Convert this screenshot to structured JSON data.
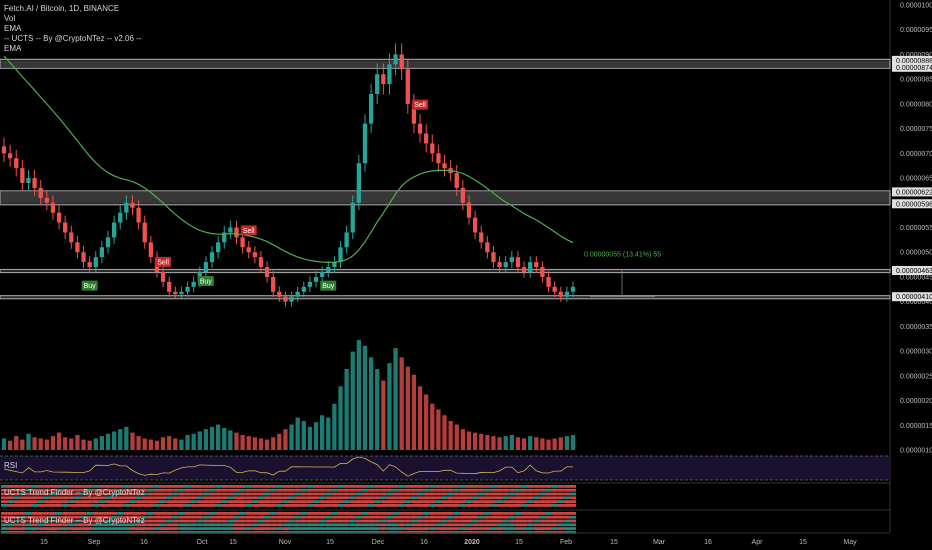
{
  "legend": {
    "title": "Fetch.AI / Bitcoin, 1D, BINANCE",
    "vol": "Vol",
    "ema1": "EMA",
    "ucts": "-- UCTS -- By @CryptoNTez -- v2.06 --",
    "ema2": "EMA"
  },
  "panes": {
    "rsi_label": "RSI",
    "trend1_label": "UCTS Trend Finder -- By @CryptoNTez",
    "trend2_label": "UCTS Trend Finder -- By @CryptoNTez"
  },
  "colors": {
    "background": "#000000",
    "up": "#26a69a",
    "down": "#ef5350",
    "ema": "#4caf50",
    "zone": "#9e9e9e",
    "buy": "#2e7d32",
    "sell": "#c62828",
    "rsi": "#d4b44a",
    "rsi_band": "#1a1030"
  },
  "chart_data": {
    "type": "candlestick",
    "symbol": "Fetch.AI / Bitcoin",
    "interval": "1D",
    "exchange": "BINANCE",
    "x_ticks": [
      "15",
      "Sep",
      "16",
      "Oct",
      "15",
      "Nov",
      "15",
      "Dec",
      "16",
      "2020",
      "15",
      "Feb",
      "15",
      "Mar",
      "16",
      "Apr",
      "15",
      "May"
    ],
    "y_ticks": [
      "0.00001000",
      "0.00000950",
      "0.00000900",
      "0.00000850",
      "0.00000800",
      "0.00000750",
      "0.00000700",
      "0.00000650",
      "0.00000600",
      "0.00000550",
      "0.00000500",
      "0.00000450",
      "0.00000400",
      "0.00000350",
      "0.00000300",
      "0.00000250",
      "0.00000200",
      "0.00000150",
      "0.00000100"
    ],
    "y_range": [
      1e-06,
      1e-05
    ],
    "price_tags": [
      "0.00000888",
      "0.00000874",
      "0.00000622",
      "0.00000598",
      "0.00000463",
      "0.00000410"
    ],
    "zones": [
      [
        8.74e-06,
        8.88e-06
      ],
      [
        5.98e-06,
        6.22e-06
      ],
      [
        4.63e-06,
        4.63e-06
      ],
      [
        4.1e-06,
        4.1e-06
      ]
    ],
    "measure_label": "0.00000055 (13.41%) 55",
    "signals": [
      {
        "text": "Buy",
        "index": 14
      },
      {
        "text": "Sell",
        "index": 26
      },
      {
        "text": "Buy",
        "index": 33
      },
      {
        "text": "Sell",
        "index": 40
      },
      {
        "text": "Buy",
        "index": 53
      },
      {
        "text": "Sell",
        "index": 68
      }
    ],
    "close_prices": [
      7e-06,
      6.9e-06,
      6.7e-06,
      6.4e-06,
      6.5e-06,
      6.3e-06,
      6.1e-06,
      6e-06,
      5.8e-06,
      5.6e-06,
      5.4e-06,
      5.2e-06,
      5e-06,
      4.8e-06,
      4.7e-06,
      4.9e-06,
      5.1e-06,
      5.3e-06,
      5.6e-06,
      5.8e-06,
      6e-06,
      5.9e-06,
      5.6e-06,
      5.2e-06,
      4.9e-06,
      4.6e-06,
      4.4e-06,
      4.2e-06,
      4.15e-06,
      4.2e-06,
      4.3e-06,
      4.4e-06,
      4.6e-06,
      4.8e-06,
      5e-06,
      5.2e-06,
      5.4e-06,
      5.5e-06,
      5.3e-06,
      5.1e-06,
      5e-06,
      4.9e-06,
      4.7e-06,
      4.5e-06,
      4.2e-06,
      4.1e-06,
      4e-06,
      4.1e-06,
      4.2e-06,
      4.3e-06,
      4.4e-06,
      4.5e-06,
      4.6e-06,
      4.7e-06,
      4.8e-06,
      5.1e-06,
      5.4e-06,
      6e-06,
      6.8e-06,
      7.6e-06,
      8.2e-06,
      8.6e-06,
      8.4e-06,
      8.8e-06,
      9e-06,
      8.7e-06,
      8e-06,
      7.6e-06,
      7.4e-06,
      7.2e-06,
      7e-06,
      6.8e-06,
      6.7e-06,
      6.6e-06,
      6.3e-06,
      6e-06,
      5.7e-06,
      5.4e-06,
      5.2e-06,
      5e-06,
      4.8e-06,
      4.7e-06,
      4.8e-06,
      4.9e-06,
      4.7e-06,
      4.6e-06,
      4.8e-06,
      4.7e-06,
      4.5e-06,
      4.3e-06,
      4.2e-06,
      4.1e-06,
      4.2e-06,
      4.3e-06
    ],
    "volume": [
      10,
      8,
      12,
      9,
      14,
      11,
      10,
      9,
      12,
      15,
      11,
      10,
      13,
      9,
      8,
      10,
      12,
      14,
      16,
      18,
      20,
      15,
      12,
      10,
      9,
      8,
      11,
      12,
      10,
      9,
      13,
      14,
      16,
      18,
      20,
      22,
      19,
      17,
      15,
      13,
      12,
      11,
      10,
      9,
      11,
      14,
      18,
      22,
      28,
      25,
      20,
      24,
      30,
      28,
      40,
      55,
      70,
      85,
      95,
      90,
      80,
      70,
      60,
      75,
      88,
      80,
      72,
      65,
      55,
      48,
      40,
      35,
      30,
      25,
      22,
      18,
      16,
      15,
      14,
      13,
      12,
      11,
      12,
      13,
      11,
      10,
      12,
      11,
      10,
      9,
      10,
      11,
      12,
      13
    ]
  }
}
